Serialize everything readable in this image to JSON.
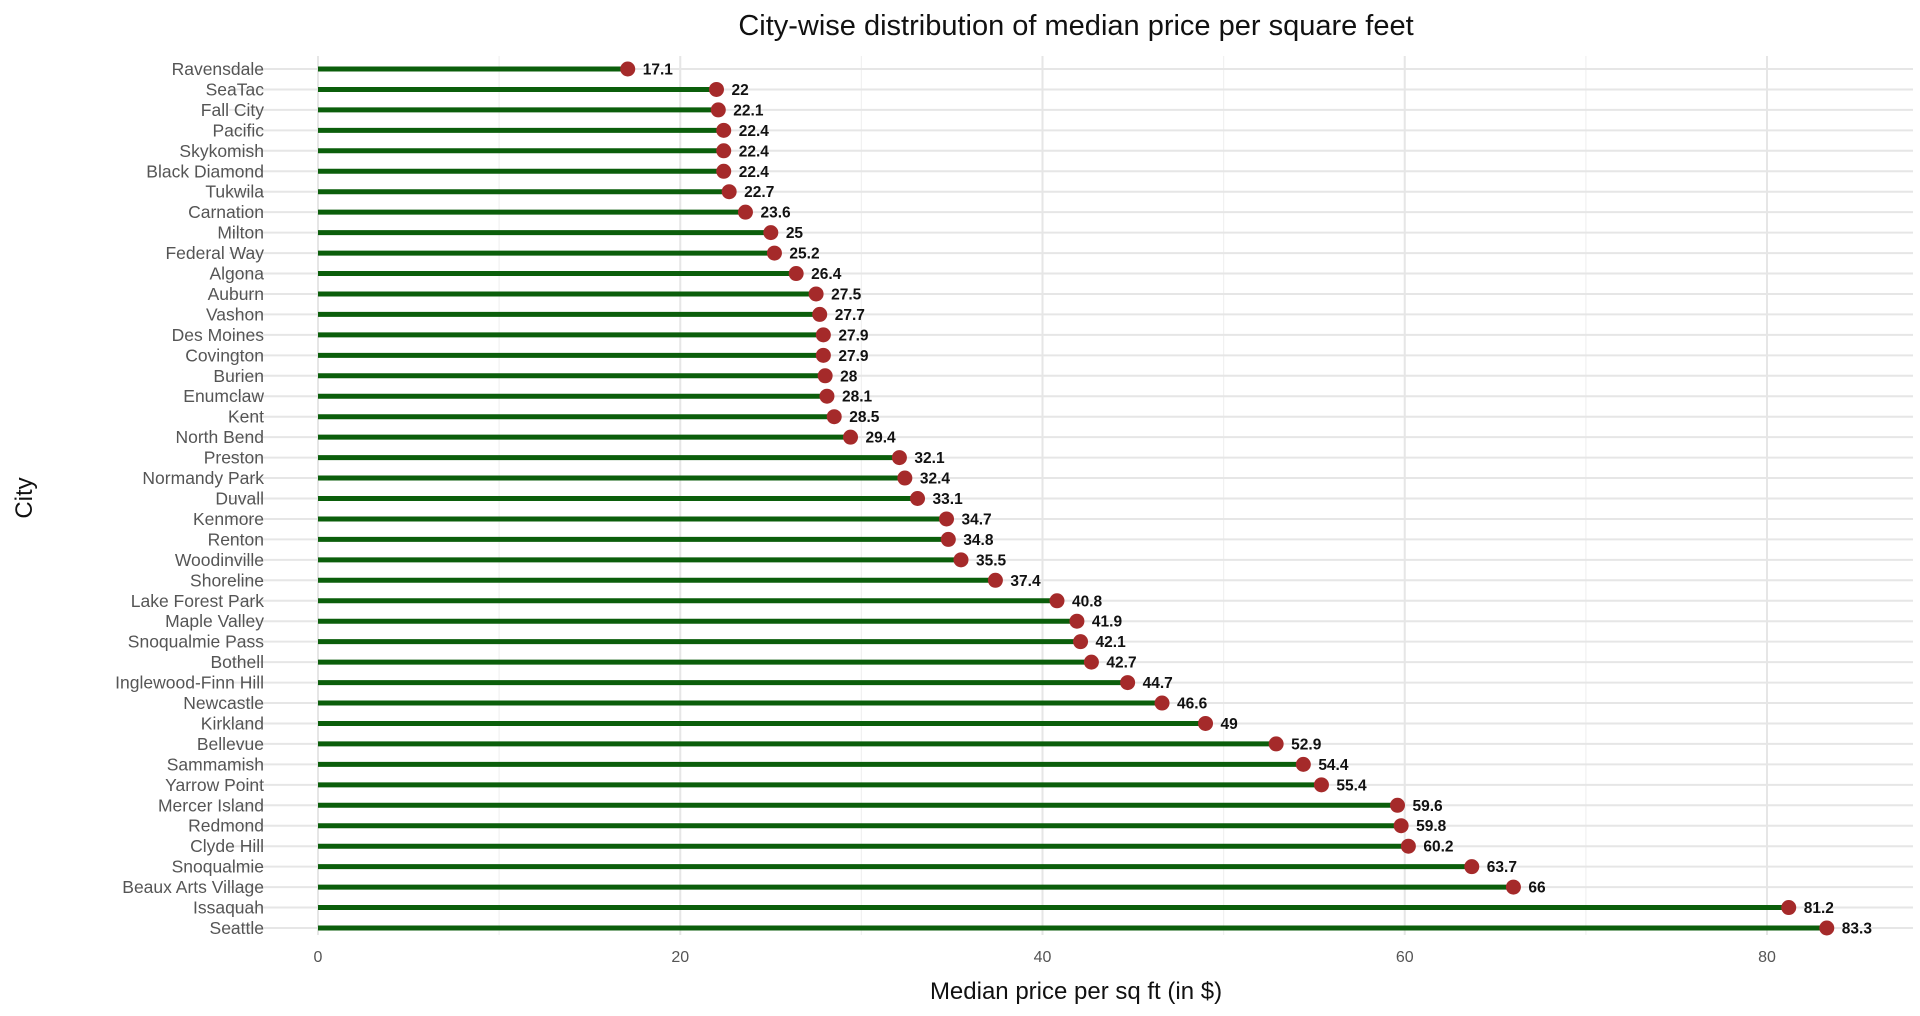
{
  "chart_data": {
    "type": "lollipop",
    "title": "City-wise distribution of median price per square feet",
    "xlabel": "Median price per sq ft (in $)",
    "ylabel": "City",
    "xlim": [
      0,
      86
    ],
    "xticks": [
      0,
      20,
      40,
      60,
      80
    ],
    "grid": true,
    "colors": {
      "stem": "#0b5e0b",
      "point": "#a52a2a"
    },
    "categories": [
      "Ravensdale",
      "SeaTac",
      "Fall City",
      "Pacific",
      "Skykomish",
      "Black Diamond",
      "Tukwila",
      "Carnation",
      "Milton",
      "Federal Way",
      "Algona",
      "Auburn",
      "Vashon",
      "Des Moines",
      "Covington",
      "Burien",
      "Enumclaw",
      "Kent",
      "North Bend",
      "Preston",
      "Normandy Park",
      "Duvall",
      "Kenmore",
      "Renton",
      "Woodinville",
      "Shoreline",
      "Lake Forest Park",
      "Maple Valley",
      "Snoqualmie Pass",
      "Bothell",
      "Inglewood-Finn Hill",
      "Newcastle",
      "Kirkland",
      "Bellevue",
      "Sammamish",
      "Yarrow Point",
      "Mercer Island",
      "Redmond",
      "Clyde Hill",
      "Snoqualmie",
      "Beaux Arts Village",
      "Issaquah",
      "Seattle"
    ],
    "values": [
      17.1,
      22,
      22.1,
      22.4,
      22.4,
      22.4,
      22.7,
      23.6,
      25,
      25.2,
      26.4,
      27.5,
      27.7,
      27.9,
      27.9,
      28,
      28.1,
      28.5,
      29.4,
      32.1,
      32.4,
      33.1,
      34.7,
      34.8,
      35.5,
      37.4,
      40.8,
      41.9,
      42.1,
      42.7,
      44.7,
      46.6,
      49,
      52.9,
      54.4,
      55.4,
      59.6,
      59.8,
      60.2,
      63.7,
      66,
      81.2,
      83.3
    ]
  }
}
